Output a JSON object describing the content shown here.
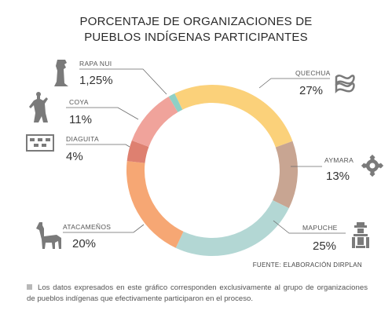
{
  "title": {
    "line1": "PORCENTAJE DE ORGANIZACIONES DE",
    "line2": "PUEBLOS INDÍGENAS PARTICIPANTES"
  },
  "chart_data": {
    "type": "pie",
    "donut": true,
    "title": "PORCENTAJE DE ORGANIZACIONES DE PUEBLOS INDÍGENAS PARTICIPANTES",
    "slices": [
      {
        "name": "QUECHUA",
        "label": "27%",
        "value": 27,
        "color": "#fbd17a",
        "icon": "quechua-pattern-icon"
      },
      {
        "name": "AYMARA",
        "label": "13%",
        "value": 13,
        "color": "#c8a592",
        "icon": "sun-gear-icon"
      },
      {
        "name": "MAPUCHE",
        "label": "25%",
        "value": 25,
        "color": "#b3d7d4",
        "icon": "mapuche-figure-icon"
      },
      {
        "name": "ATACAMEÑOS",
        "label": "20%",
        "value": 20,
        "color": "#f6a774",
        "icon": "llama-icon"
      },
      {
        "name": "DIAGUITA",
        "label": "4%",
        "value": 4,
        "color": "#de8070",
        "icon": "diaguita-pattern-icon"
      },
      {
        "name": "COYA",
        "label": "11%",
        "value": 11,
        "color": "#f0a39b",
        "icon": "coya-figure-icon"
      },
      {
        "name": "RAPA NUI",
        "label": "1,25%",
        "value": 1.25,
        "color": "#8fd0c6",
        "icon": "moai-icon"
      }
    ]
  },
  "source": "FUENTE: ELABORACIÓN DIRPLAN",
  "note": "Los datos expresados en este gráfico corresponden exclusivamente al grupo de organizaciones de pueblos indígenas que efectivamente participaron en el proceso."
}
